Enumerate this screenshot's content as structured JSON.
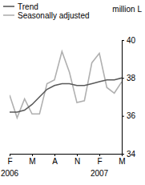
{
  "chart_data": {
    "type": "line",
    "ylabel": "million L",
    "categories": [
      "F",
      null,
      null,
      "M",
      null,
      null,
      "A",
      null,
      null,
      "N",
      null,
      null,
      "F",
      null,
      null,
      "M"
    ],
    "series": [
      {
        "name": "Trend",
        "color": "#5a5a5a",
        "values": [
          36.2,
          36.2,
          36.3,
          36.6,
          37.0,
          37.4,
          37.6,
          37.7,
          37.7,
          37.6,
          37.6,
          37.7,
          37.8,
          37.9,
          37.9,
          38.0
        ]
      },
      {
        "name": "Seasonally adjusted",
        "color": "#b0b0b0",
        "values": [
          37.1,
          35.9,
          36.9,
          36.1,
          36.1,
          37.7,
          37.9,
          39.4,
          38.3,
          36.7,
          36.8,
          38.8,
          39.3,
          37.5,
          37.2,
          37.8
        ]
      }
    ],
    "annotations": [
      {
        "text": "2006",
        "category": 0
      },
      {
        "text": "2007",
        "category": 12
      }
    ],
    "ylim": [
      34,
      40
    ],
    "yticks": [
      34,
      36,
      38,
      40
    ],
    "legend": "top-left"
  }
}
